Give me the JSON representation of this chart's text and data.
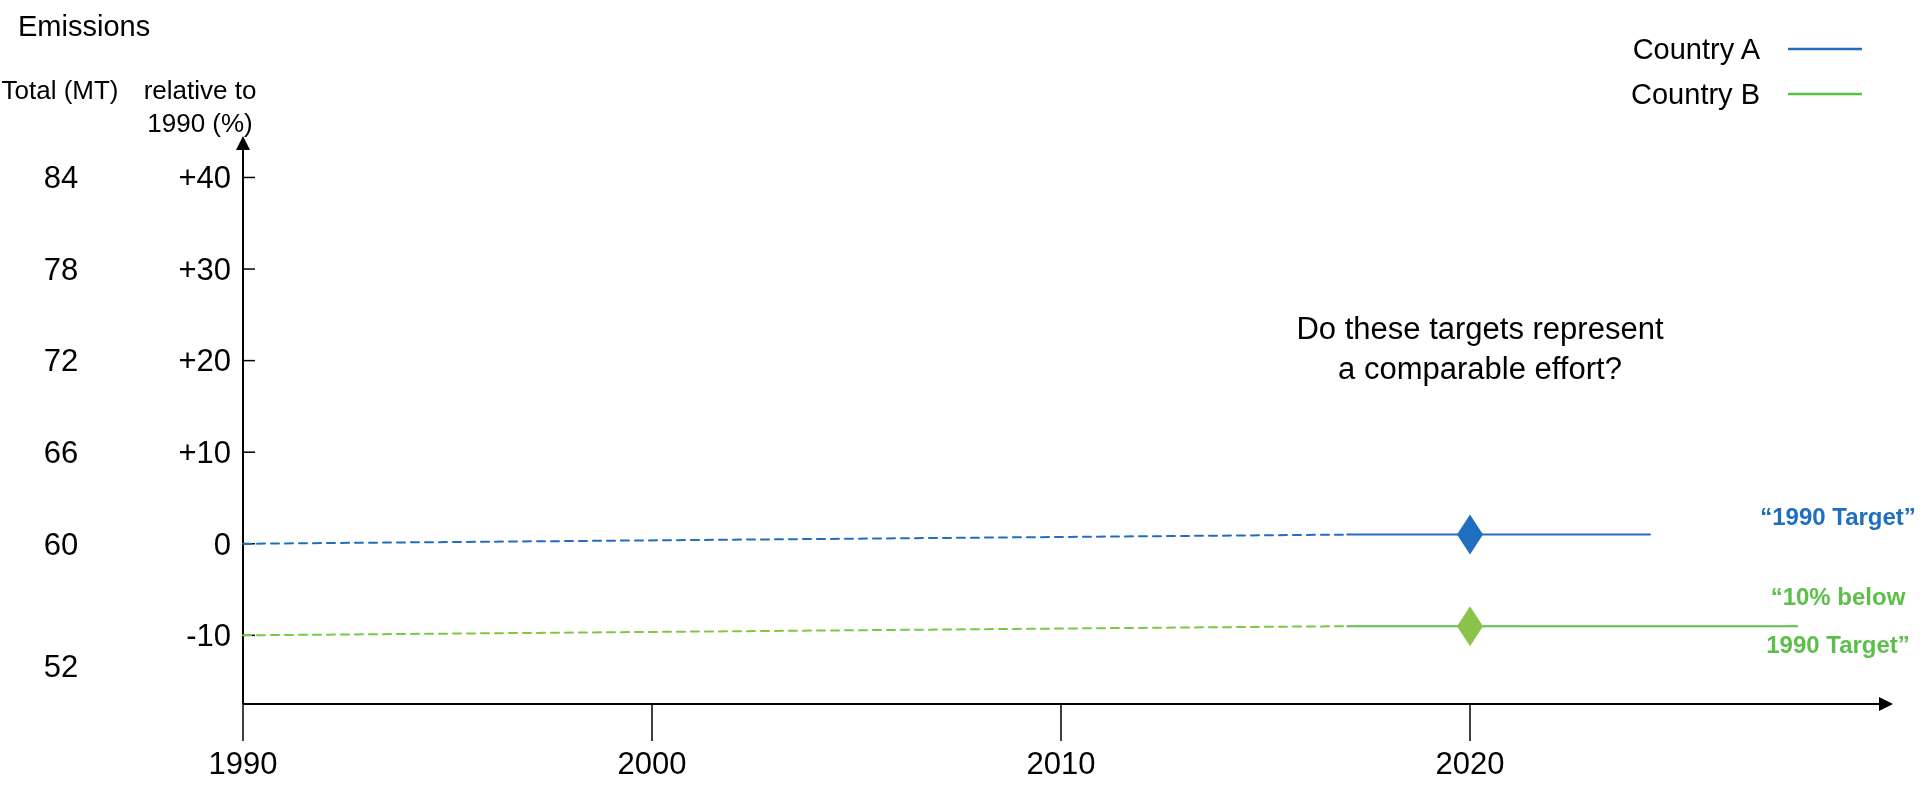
{
  "chart_data": {
    "type": "line",
    "title": "Emissions",
    "ylabel": "relative to 1990 (%)",
    "y2label": "Total (MT)",
    "xlim": [
      1990,
      2030
    ],
    "xticks": [
      1990,
      2000,
      2010,
      2020
    ],
    "ylim": [
      -17.5,
      43
    ],
    "yticks": [
      {
        "value": 40,
        "label": "+40"
      },
      {
        "value": 30,
        "label": "+30"
      },
      {
        "value": 20,
        "label": "+20"
      },
      {
        "value": 10,
        "label": "+10"
      },
      0,
      -10
    ],
    "y2lim": [
      49.5,
      85.8
    ],
    "y2ticks": [
      84,
      78,
      72,
      66,
      60,
      52
    ],
    "legend": "top right",
    "grid": false,
    "series": [
      {
        "name": "Country A",
        "color": "#1f6fc0",
        "x": [
          2017,
          2024.4
        ],
        "values": [
          1,
          1
        ],
        "line_style": "solid",
        "marker": "none"
      },
      {
        "name": "Country B",
        "color": "#5cbf4a",
        "x": [
          2017,
          2028
        ],
        "values": [
          -9,
          -9
        ],
        "line_style": "solid",
        "marker": "none"
      },
      {
        "color": "#1f6fc0",
        "x": [
          1990,
          2017
        ],
        "values": [
          0,
          1
        ],
        "line_style": "dashed",
        "marker": "none"
      },
      {
        "color": "#7ac943",
        "x": [
          1990,
          2017
        ],
        "values": [
          -10,
          -9
        ],
        "line_style": "dashed",
        "marker": "none"
      },
      {
        "type": "scatter",
        "color": "#1f6fc0",
        "x": [
          2020
        ],
        "values": [
          1
        ],
        "marker": "diamond"
      },
      {
        "type": "scatter",
        "color": "#8bc34a",
        "x": [
          2020
        ],
        "values": [
          -9
        ],
        "marker": "diamond"
      }
    ],
    "annotations": [
      "Do these targets represent a comparable effort?",
      "“1990 Target”",
      "“10% below 1990 Target”"
    ]
  }
}
